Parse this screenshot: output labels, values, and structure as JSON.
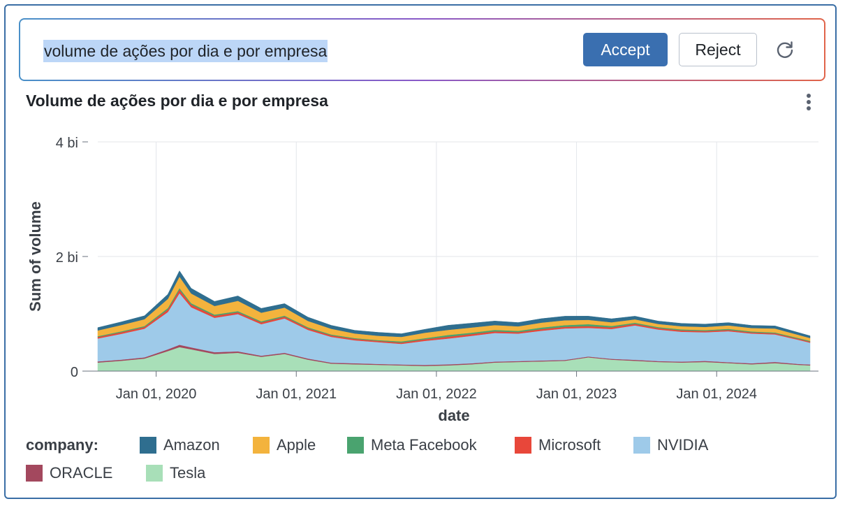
{
  "prompt": {
    "query": "volume de ações por dia e por empresa",
    "accept_label": "Accept",
    "reject_label": "Reject",
    "refresh_icon": "refresh-icon"
  },
  "chart_menu_icon": "kebab-menu-icon",
  "chart_data": {
    "type": "area",
    "stacked": true,
    "title": "Volume de ações por dia e por empresa",
    "xlabel": "date",
    "ylabel": "Sum of volume",
    "x_ticks": [
      "Jan 01, 2020",
      "Jan 01, 2021",
      "Jan 01, 2022",
      "Jan 01, 2023",
      "Jan 01, 2024"
    ],
    "y_ticks": [
      "0",
      "2 bi",
      "4 bi"
    ],
    "ylim": [
      0,
      4000000000
    ],
    "xlim": [
      "2019-08",
      "2024-09"
    ],
    "grid": true,
    "legend_title": "company:",
    "legend_position": "bottom",
    "x": [
      "2019-08",
      "2019-10",
      "2019-12",
      "2020-02",
      "2020-03",
      "2020-04",
      "2020-06",
      "2020-08",
      "2020-10",
      "2020-12",
      "2021-02",
      "2021-04",
      "2021-06",
      "2021-08",
      "2021-10",
      "2021-12",
      "2022-02",
      "2022-04",
      "2022-06",
      "2022-08",
      "2022-10",
      "2022-12",
      "2023-02",
      "2023-04",
      "2023-06",
      "2023-08",
      "2023-10",
      "2023-12",
      "2024-02",
      "2024-04",
      "2024-06",
      "2024-08",
      "2024-09"
    ],
    "series": [
      {
        "name": "Tesla",
        "color": "#a8dfb8",
        "values": [
          150000000,
          180000000,
          220000000,
          350000000,
          420000000,
          380000000,
          300000000,
          320000000,
          250000000,
          300000000,
          200000000,
          130000000,
          120000000,
          110000000,
          100000000,
          90000000,
          100000000,
          120000000,
          150000000,
          160000000,
          170000000,
          180000000,
          240000000,
          200000000,
          180000000,
          160000000,
          150000000,
          160000000,
          140000000,
          120000000,
          140000000,
          110000000,
          100000000
        ]
      },
      {
        "name": "ORACLE",
        "color": "#a3485e",
        "values": [
          20000000,
          20000000,
          20000000,
          30000000,
          40000000,
          35000000,
          30000000,
          25000000,
          20000000,
          20000000,
          20000000,
          18000000,
          18000000,
          16000000,
          16000000,
          18000000,
          18000000,
          16000000,
          16000000,
          15000000,
          15000000,
          15000000,
          15000000,
          15000000,
          18000000,
          16000000,
          16000000,
          18000000,
          16000000,
          16000000,
          20000000,
          16000000,
          16000000
        ]
      },
      {
        "name": "NVIDIA",
        "color": "#9ecae9",
        "values": [
          400000000,
          450000000,
          500000000,
          650000000,
          900000000,
          700000000,
          600000000,
          650000000,
          550000000,
          600000000,
          500000000,
          450000000,
          400000000,
          380000000,
          360000000,
          420000000,
          450000000,
          480000000,
          500000000,
          480000000,
          520000000,
          550000000,
          500000000,
          520000000,
          600000000,
          550000000,
          520000000,
          500000000,
          540000000,
          520000000,
          480000000,
          420000000,
          380000000
        ]
      },
      {
        "name": "Microsoft",
        "color": "#e8473a",
        "values": [
          25000000,
          28000000,
          30000000,
          45000000,
          60000000,
          45000000,
          35000000,
          32000000,
          30000000,
          30000000,
          28000000,
          25000000,
          24000000,
          22000000,
          22000000,
          28000000,
          32000000,
          30000000,
          28000000,
          25000000,
          28000000,
          28000000,
          30000000,
          28000000,
          26000000,
          24000000,
          24000000,
          22000000,
          22000000,
          20000000,
          20000000,
          18000000,
          18000000
        ]
      },
      {
        "name": "Meta Facebook",
        "color": "#4aa36f",
        "values": [
          15000000,
          16000000,
          16000000,
          25000000,
          30000000,
          25000000,
          22000000,
          20000000,
          20000000,
          18000000,
          18000000,
          16000000,
          15000000,
          14000000,
          20000000,
          18000000,
          30000000,
          25000000,
          25000000,
          22000000,
          28000000,
          30000000,
          35000000,
          25000000,
          20000000,
          18000000,
          18000000,
          16000000,
          20000000,
          16000000,
          14000000,
          14000000,
          14000000
        ]
      },
      {
        "name": "Apple",
        "color": "#f3b33d",
        "values": [
          100000000,
          110000000,
          120000000,
          160000000,
          200000000,
          170000000,
          150000000,
          180000000,
          150000000,
          140000000,
          110000000,
          100000000,
          80000000,
          75000000,
          80000000,
          95000000,
          90000000,
          90000000,
          85000000,
          80000000,
          85000000,
          85000000,
          75000000,
          65000000,
          60000000,
          55000000,
          55000000,
          55000000,
          60000000,
          60000000,
          70000000,
          55000000,
          50000000
        ]
      },
      {
        "name": "Amazon",
        "color": "#2f6e8f",
        "values": [
          50000000,
          55000000,
          60000000,
          80000000,
          100000000,
          90000000,
          80000000,
          85000000,
          75000000,
          70000000,
          65000000,
          60000000,
          55000000,
          60000000,
          55000000,
          60000000,
          80000000,
          75000000,
          70000000,
          65000000,
          70000000,
          70000000,
          65000000,
          60000000,
          55000000,
          50000000,
          50000000,
          50000000,
          48000000,
          45000000,
          45000000,
          40000000,
          38000000
        ]
      }
    ],
    "legend_order": [
      "Amazon",
      "Apple",
      "Meta Facebook",
      "Microsoft",
      "NVIDIA",
      "ORACLE",
      "Tesla"
    ]
  }
}
